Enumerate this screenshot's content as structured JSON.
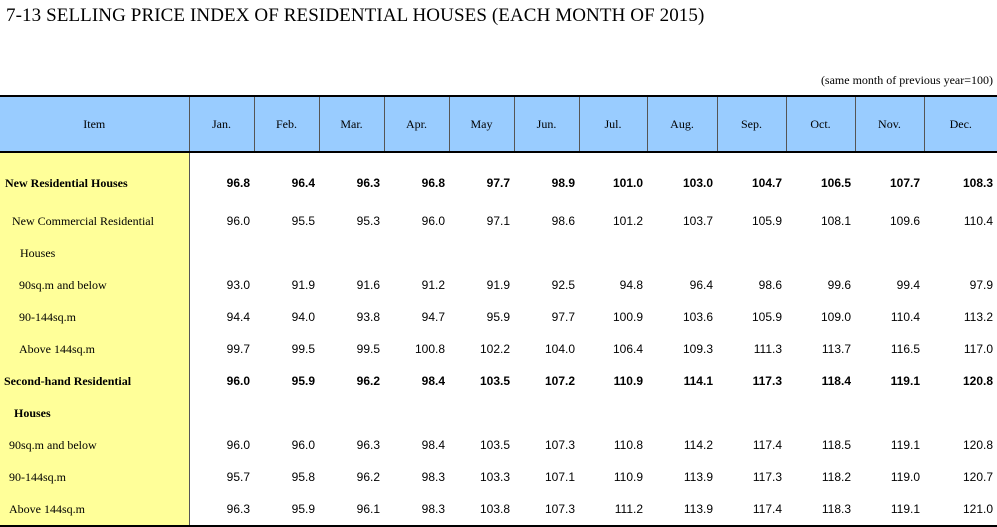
{
  "title": "7-13   SELLING PRICE INDEX OF RESIDENTIAL HOUSES (EACH MONTH OF 2015)",
  "note": "(same month of previous year=100)",
  "header": {
    "item": "Item",
    "months": [
      "Jan.",
      "Feb.",
      "Mar.",
      "Apr.",
      "May",
      "Jun.",
      "Jul.",
      "Aug.",
      "Sep.",
      "Oct.",
      "Nov.",
      "Dec."
    ]
  },
  "rows": [
    {
      "label": "New Residential Houses",
      "values": [
        "96.8",
        "96.4",
        "96.3",
        "96.8",
        "97.7",
        "98.9",
        "101.0",
        "103.0",
        "104.7",
        "106.5",
        "107.7",
        "108.3"
      ]
    },
    {
      "label": "New Commercial Residential",
      "values": [
        "96.0",
        "95.5",
        "95.3",
        "96.0",
        "97.1",
        "98.6",
        "101.2",
        "103.7",
        "105.9",
        "108.1",
        "109.6",
        "110.4"
      ]
    },
    {
      "label": "Houses",
      "values": [
        "",
        "",
        "",
        "",
        "",
        "",
        "",
        "",
        "",
        "",
        "",
        ""
      ]
    },
    {
      "label": "90sq.m and below",
      "values": [
        "93.0",
        "91.9",
        "91.6",
        "91.2",
        "91.9",
        "92.5",
        "94.8",
        "96.4",
        "98.6",
        "99.6",
        "99.4",
        "97.9"
      ]
    },
    {
      "label": "90-144sq.m",
      "values": [
        "94.4",
        "94.0",
        "93.8",
        "94.7",
        "95.9",
        "97.7",
        "100.9",
        "103.6",
        "105.9",
        "109.0",
        "110.4",
        "113.2"
      ]
    },
    {
      "label": "Above 144sq.m",
      "values": [
        "99.7",
        "99.5",
        "99.5",
        "100.8",
        "102.2",
        "104.0",
        "106.4",
        "109.3",
        "111.3",
        "113.7",
        "116.5",
        "117.0"
      ]
    },
    {
      "label": "Second-hand Residential",
      "values": [
        "96.0",
        "95.9",
        "96.2",
        "98.4",
        "103.5",
        "107.2",
        "110.9",
        "114.1",
        "117.3",
        "118.4",
        "119.1",
        "120.8"
      ]
    },
    {
      "label": "Houses",
      "values": [
        "",
        "",
        "",
        "",
        "",
        "",
        "",
        "",
        "",
        "",
        "",
        ""
      ]
    },
    {
      "label": "90sq.m and below",
      "values": [
        "96.0",
        "96.0",
        "96.3",
        "98.4",
        "103.5",
        "107.3",
        "110.8",
        "114.2",
        "117.4",
        "118.5",
        "119.1",
        "120.8"
      ]
    },
    {
      "label": "90-144sq.m",
      "values": [
        "95.7",
        "95.8",
        "96.2",
        "98.3",
        "103.3",
        "107.1",
        "110.9",
        "113.9",
        "117.3",
        "118.2",
        "119.0",
        "120.7"
      ]
    },
    {
      "label": "Above 144sq.m",
      "values": [
        "96.3",
        "95.9",
        "96.1",
        "98.3",
        "103.8",
        "107.3",
        "111.2",
        "113.9",
        "117.4",
        "118.3",
        "119.1",
        "121.0"
      ]
    }
  ],
  "colors": {
    "header_bg": "#99ccff",
    "item_bg": "#ffff99"
  }
}
